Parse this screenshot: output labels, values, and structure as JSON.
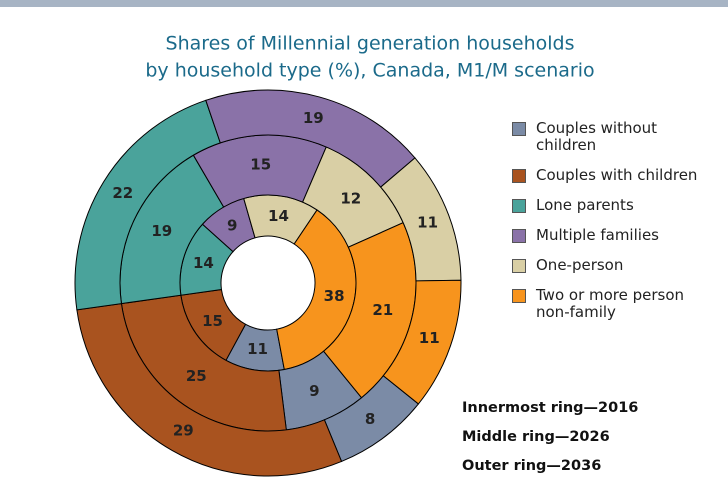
{
  "chart_data": {
    "type": "donut",
    "title": "Shares of Millennial generation households",
    "subtitle": "by household type (%), Canada, M1/M scenario",
    "legend": "right",
    "series": [
      {
        "name": "Couples without children",
        "color": "#7b8ba6",
        "values": [
          11,
          9,
          8
        ]
      },
      {
        "name": "Couples with children",
        "color": "#a9531f",
        "values": [
          15,
          25,
          29
        ]
      },
      {
        "name": "Lone parents",
        "color": "#4aa39b",
        "values": [
          14,
          19,
          22
        ]
      },
      {
        "name": "Multiple families",
        "color": "#8a72a8",
        "values": [
          9,
          15,
          19
        ]
      },
      {
        "name": "One-person",
        "color": "#d9cfa5",
        "values": [
          14,
          12,
          11
        ]
      },
      {
        "name": "Two or more person non-family",
        "color": "#f7941d",
        "values": [
          38,
          21,
          11
        ]
      }
    ],
    "annotations": [
      "Innermost ring—2016",
      "Middle ring—2026",
      "Outer ring—2036"
    ]
  }
}
